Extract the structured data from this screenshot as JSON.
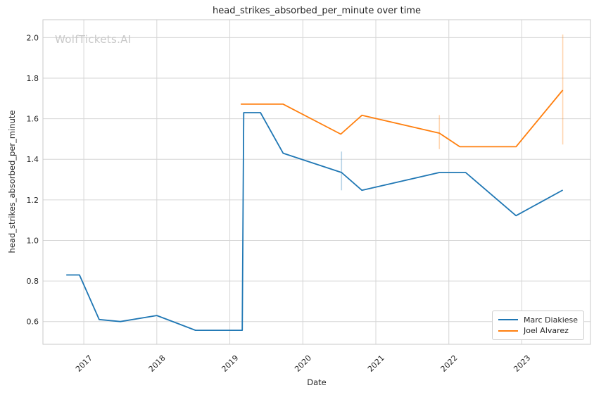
{
  "chart_data": {
    "type": "line",
    "title": "head_strikes_absorbed_per_minute over time",
    "xlabel": "Date",
    "ylabel": "head_strikes_absorbed_per_minute",
    "watermark": "WolfTickets.AI",
    "grid": true,
    "legend_position": "lower right",
    "x_ticks": [
      2017,
      2018,
      2019,
      2020,
      2021,
      2022,
      2023
    ],
    "y_ticks": [
      0.6,
      0.8,
      1.0,
      1.2,
      1.4,
      1.6,
      1.8,
      2.0
    ],
    "xlim": [
      2016.44,
      2023.94
    ],
    "ylim": [
      0.488,
      2.088
    ],
    "colors": {
      "grid": "#d6d6d6",
      "spine": "#c9c9c9",
      "tick_label": "#262626"
    },
    "series": [
      {
        "name": "Marc Diakiese",
        "color": "#1f77b4",
        "x": [
          2016.76,
          2016.94,
          2017.21,
          2017.5,
          2018.0,
          2018.53,
          2019.17,
          2019.19,
          2019.42,
          2019.73,
          2020.53,
          2020.81,
          2021.87,
          2022.23,
          2022.92,
          2023.56
        ],
        "y": [
          0.83,
          0.83,
          0.61,
          0.6,
          0.63,
          0.557,
          0.557,
          1.63,
          1.63,
          1.43,
          1.335,
          1.247,
          1.335,
          1.335,
          1.122,
          1.248
        ],
        "error_bars": [
          {
            "x": 2020.53,
            "low": 1.247,
            "high": 1.438
          }
        ]
      },
      {
        "name": "Joel Alvarez",
        "color": "#ff7f0e",
        "x": [
          2019.15,
          2019.73,
          2020.52,
          2020.81,
          2021.87,
          2022.15,
          2022.92,
          2023.56
        ],
        "y": [
          1.672,
          1.672,
          1.524,
          1.617,
          1.529,
          1.462,
          1.462,
          1.741
        ],
        "error_bars": [
          {
            "x": 2021.87,
            "low": 1.45,
            "high": 1.618
          },
          {
            "x": 2023.56,
            "low": 1.473,
            "high": 2.015
          }
        ]
      }
    ]
  }
}
